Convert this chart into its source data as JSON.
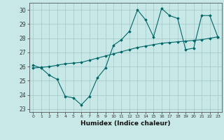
{
  "xlabel": "Humidex (Indice chaleur)",
  "ylabel": "",
  "bg_color": "#c8e8e8",
  "line_color": "#006666",
  "grid_color": "#a0c8c8",
  "x_values": [
    0,
    1,
    2,
    3,
    4,
    5,
    6,
    7,
    8,
    9,
    10,
    11,
    12,
    13,
    14,
    15,
    16,
    17,
    18,
    19,
    20,
    21,
    22,
    23
  ],
  "y_humidex": [
    26.1,
    25.9,
    25.4,
    25.1,
    23.9,
    23.8,
    23.3,
    23.9,
    25.2,
    25.9,
    27.5,
    27.9,
    28.5,
    30.0,
    29.3,
    28.1,
    30.1,
    29.6,
    29.4,
    27.2,
    27.3,
    29.6,
    29.6,
    28.1
  ],
  "y_trend": [
    25.9,
    25.95,
    26.0,
    26.1,
    26.2,
    26.25,
    26.3,
    26.45,
    26.6,
    26.75,
    26.9,
    27.05,
    27.2,
    27.35,
    27.45,
    27.55,
    27.65,
    27.7,
    27.75,
    27.8,
    27.85,
    27.9,
    28.0,
    28.1
  ],
  "ylim": [
    22.8,
    30.5
  ],
  "yticks": [
    23,
    24,
    25,
    26,
    27,
    28,
    29,
    30
  ],
  "xlim": [
    -0.5,
    23.5
  ],
  "xtick_labels": [
    "0",
    "1",
    "2",
    "3",
    "4",
    "5",
    "6",
    "7",
    "8",
    "9",
    "10",
    "11",
    "12",
    "13",
    "14",
    "15",
    "16",
    "17",
    "18",
    "19",
    "20",
    "21",
    "22",
    "23"
  ]
}
